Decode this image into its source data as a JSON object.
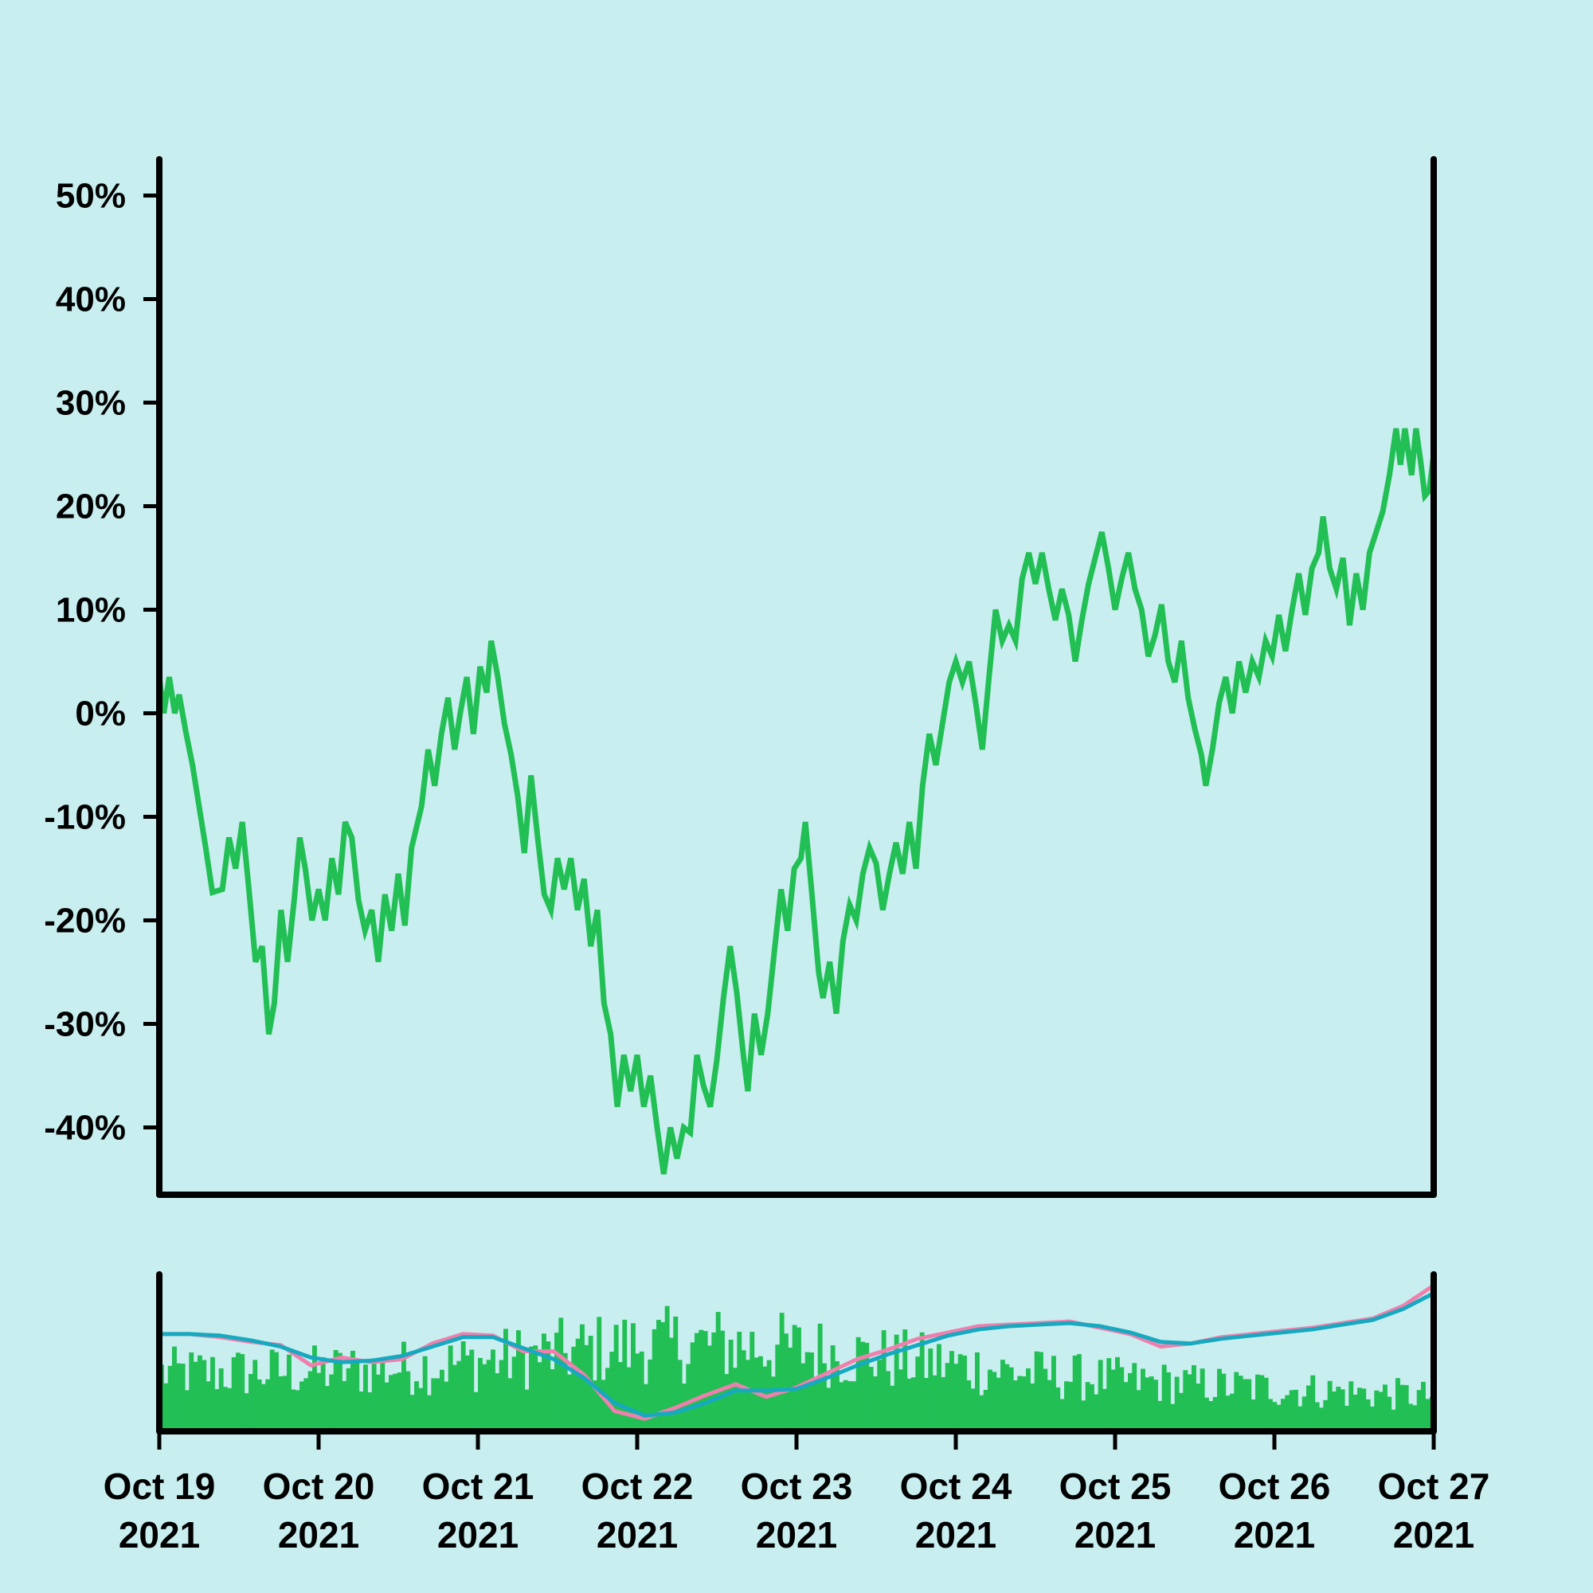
{
  "chart_data": [
    {
      "type": "line",
      "role": "price-change",
      "series_color": "#22bf55",
      "y_tick_labels": [
        "50%",
        "40%",
        "30%",
        "20%",
        "10%",
        "0%",
        "-10%",
        "-20%",
        "-30%",
        "-40%"
      ],
      "y_tick_values": [
        50,
        40,
        30,
        20,
        10,
        0,
        -10,
        -20,
        -30,
        -40
      ],
      "ylim": [
        -46.5,
        53.5
      ],
      "xlim": [
        "2021-10-19",
        "2021-10-27"
      ],
      "grid": false,
      "points": [
        [
          "2021-10-19 00:00",
          3.5
        ],
        [
          "2021-10-19 00:40",
          0.0
        ],
        [
          "2021-10-19 01:30",
          3.5
        ],
        [
          "2021-10-19 02:20",
          0.0
        ],
        [
          "2021-10-19 03:00",
          1.8
        ],
        [
          "2021-10-19 04:00",
          -1.8
        ],
        [
          "2021-10-19 05:00",
          -5.0
        ],
        [
          "2021-10-19 06:00",
          -9.0
        ],
        [
          "2021-10-19 07:00",
          -13.0
        ],
        [
          "2021-10-19 08:00",
          -17.3
        ],
        [
          "2021-10-19 09:30",
          -17.0
        ],
        [
          "2021-10-19 10:30",
          -12.0
        ],
        [
          "2021-10-19 11:30",
          -15.0
        ],
        [
          "2021-10-19 12:30",
          -10.5
        ],
        [
          "2021-10-19 13:30",
          -17.0
        ],
        [
          "2021-10-19 14:30",
          -24.0
        ],
        [
          "2021-10-19 15:30",
          -22.5
        ],
        [
          "2021-10-19 16:30",
          -31.0
        ],
        [
          "2021-10-19 17:20",
          -28.0
        ],
        [
          "2021-10-19 18:20",
          -19.0
        ],
        [
          "2021-10-19 19:20",
          -24.0
        ],
        [
          "2021-10-19 20:20",
          -18.0
        ],
        [
          "2021-10-19 21:10",
          -12.0
        ],
        [
          "2021-10-19 22:00",
          -15.0
        ],
        [
          "2021-10-19 23:00",
          -20.0
        ],
        [
          "2021-10-20 00:00",
          -17.0
        ],
        [
          "2021-10-20 01:00",
          -20.0
        ],
        [
          "2021-10-20 02:00",
          -14.0
        ],
        [
          "2021-10-20 03:00",
          -17.5
        ],
        [
          "2021-10-20 04:00",
          -10.5
        ],
        [
          "2021-10-20 05:00",
          -12.0
        ],
        [
          "2021-10-20 06:00",
          -18.0
        ],
        [
          "2021-10-20 07:00",
          -21.0
        ],
        [
          "2021-10-20 08:00",
          -19.0
        ],
        [
          "2021-10-20 09:00",
          -24.0
        ],
        [
          "2021-10-20 10:00",
          -17.5
        ],
        [
          "2021-10-20 11:00",
          -21.0
        ],
        [
          "2021-10-20 12:00",
          -15.5
        ],
        [
          "2021-10-20 13:00",
          -20.5
        ],
        [
          "2021-10-20 14:00",
          -13.0
        ],
        [
          "2021-10-20 15:30",
          -9.0
        ],
        [
          "2021-10-20 16:30",
          -3.5
        ],
        [
          "2021-10-20 17:30",
          -7.0
        ],
        [
          "2021-10-20 18:30",
          -2.0
        ],
        [
          "2021-10-20 19:30",
          1.5
        ],
        [
          "2021-10-20 20:30",
          -3.5
        ],
        [
          "2021-10-20 21:20",
          0.0
        ],
        [
          "2021-10-20 22:20",
          3.5
        ],
        [
          "2021-10-20 23:20",
          -2.0
        ],
        [
          "2021-10-21 00:20",
          4.5
        ],
        [
          "2021-10-21 01:20",
          2.0
        ],
        [
          "2021-10-21 02:00",
          7.0
        ],
        [
          "2021-10-21 03:00",
          3.5
        ],
        [
          "2021-10-21 04:00",
          -1.0
        ],
        [
          "2021-10-21 05:00",
          -4.0
        ],
        [
          "2021-10-21 06:00",
          -8.0
        ],
        [
          "2021-10-21 07:00",
          -13.5
        ],
        [
          "2021-10-21 08:00",
          -6.0
        ],
        [
          "2021-10-21 09:00",
          -12.0
        ],
        [
          "2021-10-21 10:00",
          -17.5
        ],
        [
          "2021-10-21 11:00",
          -19.0
        ],
        [
          "2021-10-21 12:00",
          -14.0
        ],
        [
          "2021-10-21 13:00",
          -17.0
        ],
        [
          "2021-10-21 14:00",
          -14.0
        ],
        [
          "2021-10-21 15:00",
          -19.0
        ],
        [
          "2021-10-21 16:00",
          -16.0
        ],
        [
          "2021-10-21 17:00",
          -22.5
        ],
        [
          "2021-10-21 18:00",
          -19.0
        ],
        [
          "2021-10-21 19:00",
          -28.0
        ],
        [
          "2021-10-21 20:00",
          -31.0
        ],
        [
          "2021-10-21 21:00",
          -38.0
        ],
        [
          "2021-10-21 22:00",
          -33.0
        ],
        [
          "2021-10-21 23:00",
          -36.5
        ],
        [
          "2021-10-22 00:00",
          -33.0
        ],
        [
          "2021-10-22 01:00",
          -38.0
        ],
        [
          "2021-10-22 02:00",
          -35.0
        ],
        [
          "2021-10-22 03:00",
          -40.0
        ],
        [
          "2021-10-22 04:00",
          -44.5
        ],
        [
          "2021-10-22 05:00",
          -40.0
        ],
        [
          "2021-10-22 06:00",
          -43.0
        ],
        [
          "2021-10-22 07:00",
          -40.0
        ],
        [
          "2021-10-22 08:00",
          -40.5
        ],
        [
          "2021-10-22 09:00",
          -33.0
        ],
        [
          "2021-10-22 10:00",
          -36.0
        ],
        [
          "2021-10-22 11:00",
          -38.0
        ],
        [
          "2021-10-22 12:00",
          -33.5
        ],
        [
          "2021-10-22 13:00",
          -27.5
        ],
        [
          "2021-10-22 14:00",
          -22.5
        ],
        [
          "2021-10-22 15:00",
          -27.0
        ],
        [
          "2021-10-22 16:00",
          -33.0
        ],
        [
          "2021-10-22 16:40",
          -36.5
        ],
        [
          "2021-10-22 17:40",
          -29.0
        ],
        [
          "2021-10-22 18:40",
          -33.0
        ],
        [
          "2021-10-22 19:40",
          -29.0
        ],
        [
          "2021-10-22 20:40",
          -23.0
        ],
        [
          "2021-10-22 21:40",
          -17.0
        ],
        [
          "2021-10-22 22:40",
          -21.0
        ],
        [
          "2021-10-22 23:40",
          -15.0
        ],
        [
          "2021-10-23 00:40",
          -14.0
        ],
        [
          "2021-10-23 01:20",
          -10.5
        ],
        [
          "2021-10-23 02:20",
          -17.5
        ],
        [
          "2021-10-23 03:20",
          -25.0
        ],
        [
          "2021-10-23 04:00",
          -27.5
        ],
        [
          "2021-10-23 05:00",
          -24.0
        ],
        [
          "2021-10-23 06:00",
          -29.0
        ],
        [
          "2021-10-23 07:00",
          -22.0
        ],
        [
          "2021-10-23 08:00",
          -18.5
        ],
        [
          "2021-10-23 09:00",
          -20.0
        ],
        [
          "2021-10-23 10:00",
          -15.5
        ],
        [
          "2021-10-23 11:00",
          -13.0
        ],
        [
          "2021-10-23 12:00",
          -14.5
        ],
        [
          "2021-10-23 13:00",
          -19.0
        ],
        [
          "2021-10-23 14:00",
          -15.5
        ],
        [
          "2021-10-23 15:00",
          -12.5
        ],
        [
          "2021-10-23 16:00",
          -15.5
        ],
        [
          "2021-10-23 17:00",
          -10.5
        ],
        [
          "2021-10-23 18:00",
          -15.0
        ],
        [
          "2021-10-23 19:00",
          -7.0
        ],
        [
          "2021-10-23 20:00",
          -2.0
        ],
        [
          "2021-10-23 21:00",
          -5.0
        ],
        [
          "2021-10-23 22:00",
          -1.0
        ],
        [
          "2021-10-23 23:00",
          3.0
        ],
        [
          "2021-10-24 00:00",
          5.0
        ],
        [
          "2021-10-24 01:00",
          3.0
        ],
        [
          "2021-10-24 02:00",
          5.0
        ],
        [
          "2021-10-24 03:00",
          1.0
        ],
        [
          "2021-10-24 04:00",
          -3.5
        ],
        [
          "2021-10-24 05:00",
          3.5
        ],
        [
          "2021-10-24 06:00",
          10.0
        ],
        [
          "2021-10-24 07:00",
          7.0
        ],
        [
          "2021-10-24 08:00",
          8.5
        ],
        [
          "2021-10-24 09:00",
          7.0
        ],
        [
          "2021-10-24 10:00",
          13.0
        ],
        [
          "2021-10-24 11:00",
          15.5
        ],
        [
          "2021-10-24 12:00",
          12.5
        ],
        [
          "2021-10-24 13:00",
          15.5
        ],
        [
          "2021-10-24 14:00",
          12.0
        ],
        [
          "2021-10-24 15:00",
          9.0
        ],
        [
          "2021-10-24 16:00",
          12.0
        ],
        [
          "2021-10-24 17:00",
          9.5
        ],
        [
          "2021-10-24 18:00",
          5.0
        ],
        [
          "2021-10-24 19:00",
          9.0
        ],
        [
          "2021-10-24 20:00",
          12.5
        ],
        [
          "2021-10-24 21:00",
          15.0
        ],
        [
          "2021-10-24 22:00",
          17.5
        ],
        [
          "2021-10-24 23:00",
          14.0
        ],
        [
          "2021-10-25 00:00",
          10.0
        ],
        [
          "2021-10-25 01:00",
          13.0
        ],
        [
          "2021-10-25 02:00",
          15.5
        ],
        [
          "2021-10-25 03:00",
          12.0
        ],
        [
          "2021-10-25 04:00",
          10.0
        ],
        [
          "2021-10-25 05:00",
          5.5
        ],
        [
          "2021-10-25 06:00",
          7.5
        ],
        [
          "2021-10-25 07:00",
          10.5
        ],
        [
          "2021-10-25 08:00",
          5.0
        ],
        [
          "2021-10-25 09:00",
          3.0
        ],
        [
          "2021-10-25 10:00",
          7.0
        ],
        [
          "2021-10-25 11:00",
          1.5
        ],
        [
          "2021-10-25 12:00",
          -1.5
        ],
        [
          "2021-10-25 13:00",
          -4.0
        ],
        [
          "2021-10-25 13:40",
          -7.0
        ],
        [
          "2021-10-25 14:40",
          -3.5
        ],
        [
          "2021-10-25 15:40",
          1.0
        ],
        [
          "2021-10-25 16:40",
          3.5
        ],
        [
          "2021-10-25 17:40",
          0.0
        ],
        [
          "2021-10-25 18:40",
          5.0
        ],
        [
          "2021-10-25 19:40",
          2.0
        ],
        [
          "2021-10-25 20:40",
          5.0
        ],
        [
          "2021-10-25 21:40",
          3.5
        ],
        [
          "2021-10-25 22:40",
          7.0
        ],
        [
          "2021-10-25 23:40",
          5.5
        ],
        [
          "2021-10-26 00:40",
          9.5
        ],
        [
          "2021-10-26 01:40",
          6.0
        ],
        [
          "2021-10-26 02:40",
          10.0
        ],
        [
          "2021-10-26 03:40",
          13.5
        ],
        [
          "2021-10-26 04:40",
          9.5
        ],
        [
          "2021-10-26 05:40",
          14.0
        ],
        [
          "2021-10-26 06:40",
          15.5
        ],
        [
          "2021-10-26 07:20",
          19.0
        ],
        [
          "2021-10-26 08:20",
          14.0
        ],
        [
          "2021-10-26 09:20",
          12.0
        ],
        [
          "2021-10-26 10:20",
          15.0
        ],
        [
          "2021-10-26 11:20",
          8.5
        ],
        [
          "2021-10-26 12:20",
          13.5
        ],
        [
          "2021-10-26 13:20",
          10.0
        ],
        [
          "2021-10-26 14:20",
          15.5
        ],
        [
          "2021-10-26 15:20",
          17.5
        ],
        [
          "2021-10-26 16:20",
          19.5
        ],
        [
          "2021-10-26 17:20",
          23.0
        ],
        [
          "2021-10-26 18:20",
          27.5
        ],
        [
          "2021-10-26 19:00",
          24.0
        ],
        [
          "2021-10-26 19:40",
          27.5
        ],
        [
          "2021-10-26 20:40",
          23.0
        ],
        [
          "2021-10-26 21:20",
          27.5
        ],
        [
          "2021-10-26 22:00",
          24.5
        ],
        [
          "2021-10-26 22:40",
          21.0
        ],
        [
          "2021-10-26 23:20",
          21.5
        ],
        [
          "2021-10-27 00:00",
          25.0
        ]
      ]
    },
    {
      "type": "bar+line",
      "role": "volume",
      "bar_color": "#22bf55",
      "overlay_series": [
        {
          "color": "#f07fae",
          "values": [
            0.62,
            0.62,
            0.6,
            0.57,
            0.55,
            0.42,
            0.47,
            0.44,
            0.46,
            0.56,
            0.62,
            0.61,
            0.51,
            0.51,
            0.36,
            0.13,
            0.08,
            0.15,
            0.23,
            0.3,
            0.22,
            0.28,
            0.37,
            0.46,
            0.52,
            0.59,
            0.63,
            0.67,
            0.68,
            0.69,
            0.7,
            0.66,
            0.62,
            0.54,
            0.56,
            0.6,
            0.62,
            0.64,
            0.66,
            0.69,
            0.72,
            0.8,
            0.93
          ]
        },
        {
          "color": "#16a9c0",
          "values": [
            0.62,
            0.62,
            0.61,
            0.58,
            0.54,
            0.47,
            0.44,
            0.45,
            0.48,
            0.54,
            0.6,
            0.6,
            0.53,
            0.46,
            0.34,
            0.18,
            0.1,
            0.12,
            0.18,
            0.26,
            0.26,
            0.27,
            0.34,
            0.42,
            0.49,
            0.55,
            0.61,
            0.65,
            0.67,
            0.68,
            0.69,
            0.67,
            0.63,
            0.57,
            0.56,
            0.59,
            0.61,
            0.63,
            0.65,
            0.68,
            0.71,
            0.78,
            0.88
          ]
        }
      ],
      "x_tick_labels": [
        [
          "Oct 19",
          "2021"
        ],
        [
          "Oct 20",
          "2021"
        ],
        [
          "Oct 21",
          "2021"
        ],
        [
          "Oct 22",
          "2021"
        ],
        [
          "Oct 23",
          "2021"
        ],
        [
          "Oct 24",
          "2021"
        ],
        [
          "Oct 25",
          "2021"
        ],
        [
          "Oct 26",
          "2021"
        ],
        [
          "Oct 27",
          "2021"
        ]
      ],
      "x_tick_values": [
        "2021-10-19",
        "2021-10-20",
        "2021-10-21",
        "2021-10-22",
        "2021-10-23",
        "2021-10-24",
        "2021-10-25",
        "2021-10-26",
        "2021-10-27"
      ]
    }
  ]
}
